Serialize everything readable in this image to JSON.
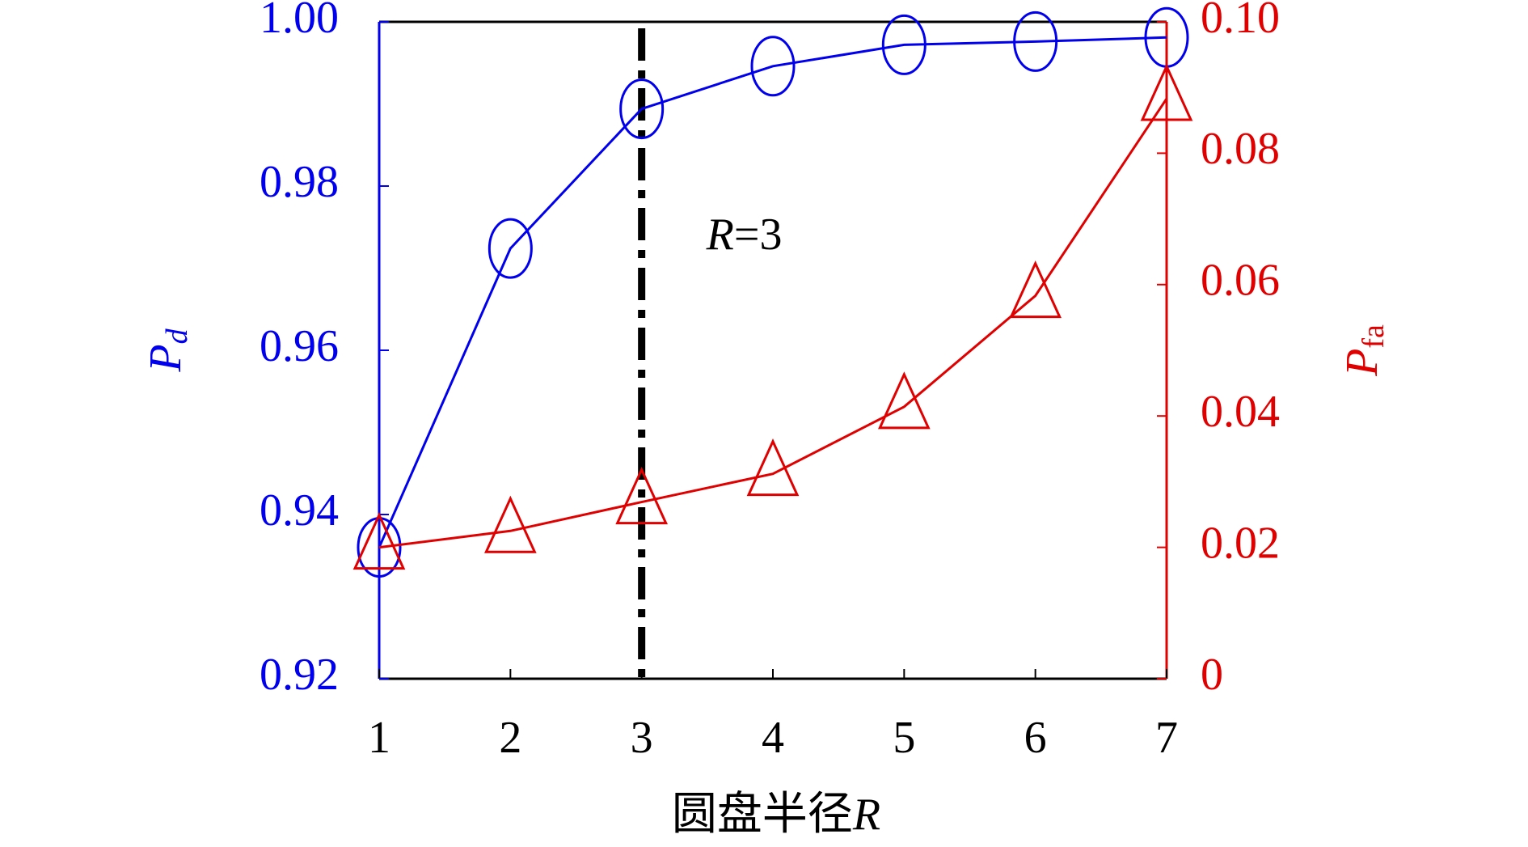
{
  "chart_data": {
    "type": "line",
    "x": [
      1,
      2,
      3,
      4,
      5,
      6,
      7
    ],
    "xlim": [
      1,
      7
    ],
    "xticks": [
      1,
      2,
      3,
      4,
      5,
      6,
      7
    ],
    "ylim": [
      0.92,
      1.0
    ],
    "yticks": [
      {
        "value": 0.92,
        "label": "0.92"
      },
      {
        "value": 0.94,
        "label": "0.94"
      },
      {
        "value": 0.96,
        "label": "0.96"
      },
      {
        "value": 0.98,
        "label": "0.98"
      },
      {
        "value": 1.0,
        "label": "1.00"
      }
    ],
    "y2lim": [
      0,
      0.1
    ],
    "y2ticks": [
      0,
      {
        "value": 0.02,
        "label": "0.02"
      },
      {
        "value": 0.04,
        "label": "0.04"
      },
      {
        "value": 0.06,
        "label": "0.06"
      },
      {
        "value": 0.08,
        "label": "0.08"
      },
      {
        "value": 0.1,
        "label": "0.10"
      }
    ],
    "xlabel": "圆盘半径",
    "xlabel_var": "R",
    "ylabel": "P",
    "ylabel_sub": "d",
    "y2label": "P",
    "y2label_sub": "fa",
    "annotation": {
      "var": "R",
      "text": "=3",
      "x": 3
    },
    "series": [
      {
        "color": "#0000ee",
        "marker": "circle",
        "values": [
          0.936,
          0.9724,
          0.9894,
          0.9946,
          0.9972,
          0.9976,
          0.9981
        ]
      },
      {
        "color": "#e00000",
        "marker": "triangle",
        "axis": "y2",
        "values": [
          0.02,
          0.0225,
          0.0269,
          0.0312,
          0.0414,
          0.0583,
          0.0883
        ]
      }
    ]
  }
}
